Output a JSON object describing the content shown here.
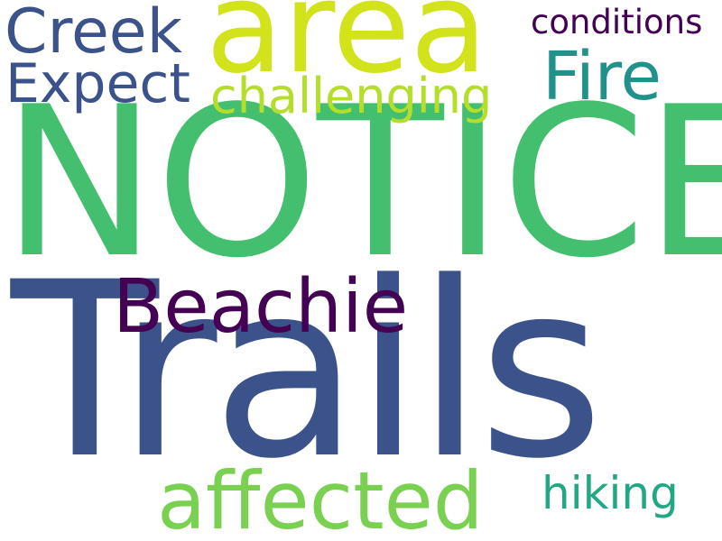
{
  "cloud": {
    "background": "#ffffff",
    "words": {
      "area": "area",
      "creek": "Creek",
      "expect": "Expect",
      "conditions": "conditions",
      "fire": "Fire",
      "challenging": "challenging",
      "notice": "NOTICE",
      "beachie": "Beachie",
      "trails": "Trails",
      "affected": "affected",
      "hiking": "hiking"
    },
    "colors": {
      "yellow": "#d2e21b",
      "lime": "#b5de2b",
      "light_green": "#7ad151",
      "green": "#44bf70",
      "teal": "#21918c",
      "sea_green": "#22a884",
      "blue": "#3b528b",
      "purple": "#440154"
    }
  }
}
